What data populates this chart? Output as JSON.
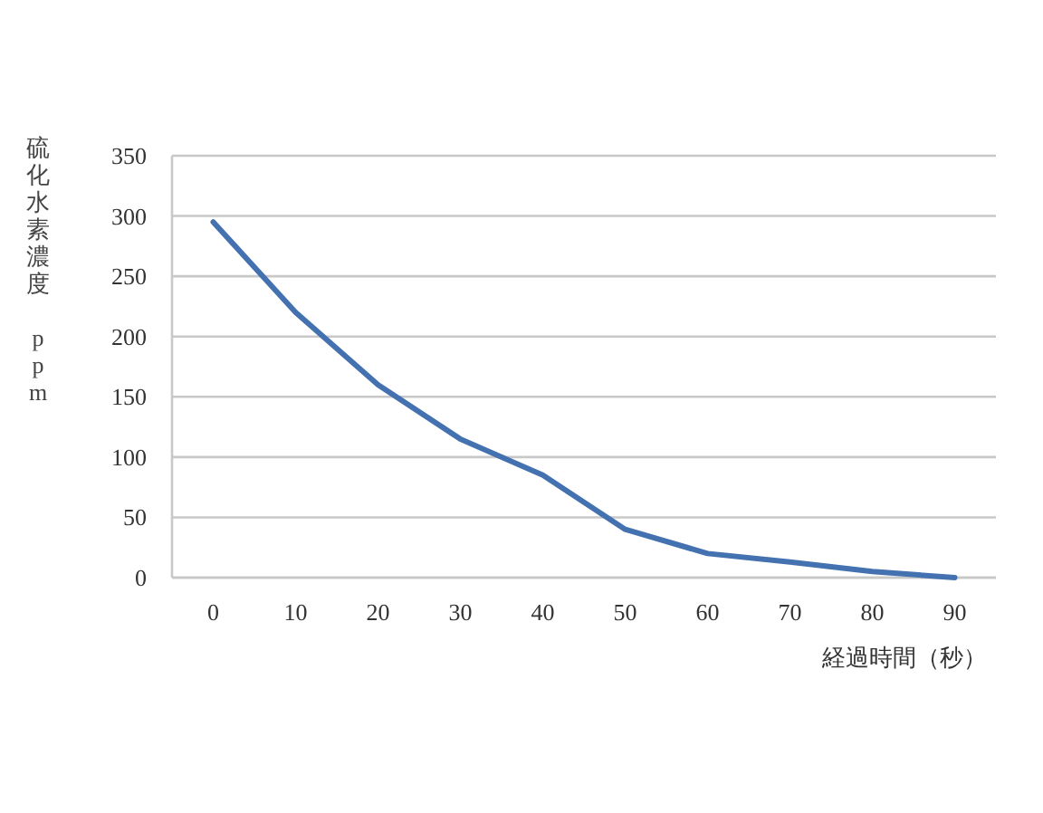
{
  "chart_data": {
    "type": "line",
    "xlabel": "経過時間（秒）",
    "ylabel": "硫化水素濃度 ppm",
    "categories": [
      "0",
      "10",
      "20",
      "30",
      "40",
      "50",
      "60",
      "70",
      "80",
      "90"
    ],
    "series": [
      {
        "color": "#4472b0",
        "values": [
          295,
          220,
          160,
          115,
          85,
          40,
          20,
          13,
          5,
          0
        ]
      }
    ],
    "ylim": [
      0,
      350
    ],
    "yticks": [
      0,
      50,
      100,
      150,
      200,
      250,
      300,
      350
    ],
    "grid": "y"
  }
}
